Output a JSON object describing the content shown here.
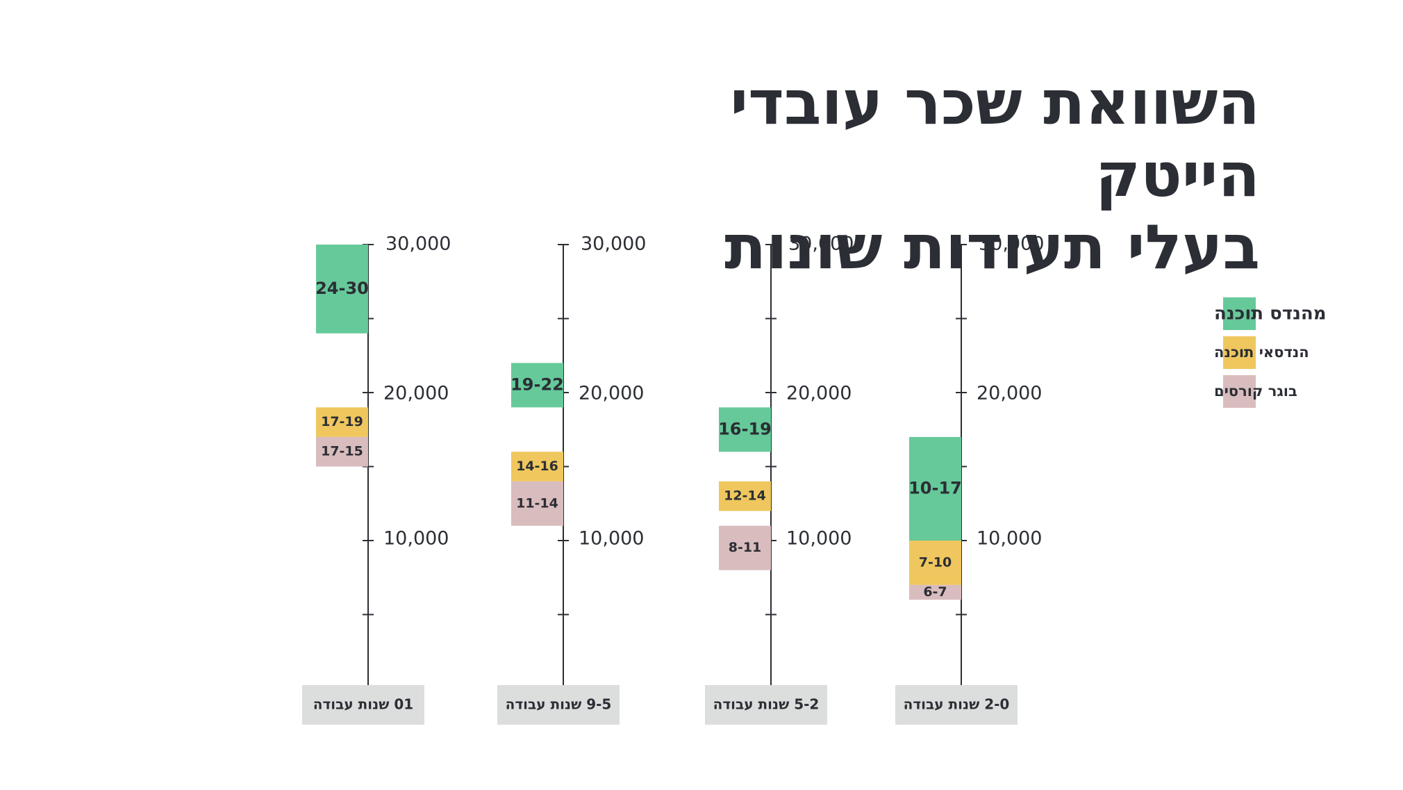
{
  "title": {
    "line1": "השוואת שכר עובדי הייטק",
    "line2": "בעלי תעודות שונות"
  },
  "chart_data": {
    "type": "bar",
    "subtype": "floating-range",
    "title": "השוואת שכר עובדי הייטק בעלי תעודות שונות",
    "ylim": [
      0,
      30000
    ],
    "y_ticks": [
      10000,
      20000,
      30000
    ],
    "y_tick_labels": [
      "10,000",
      "20,000",
      "30,000"
    ],
    "categories": [
      "2-0 שנות עבודה",
      "5-2 שנות עבודה",
      "9-5 שנות עבודה",
      "01 שנות עבודה"
    ],
    "series": [
      {
        "name": "מהנדס תוכנה",
        "color": "#66c99a",
        "ranges": [
          [
            10000,
            17000
          ],
          [
            16000,
            19000
          ],
          [
            19000,
            22000
          ],
          [
            24000,
            30000
          ]
        ],
        "labels": [
          "10-17",
          "16-19",
          "19-22",
          "24-30"
        ]
      },
      {
        "name": "הנדסאי תוכנה",
        "color": "#efc75e",
        "ranges": [
          [
            7000,
            10000
          ],
          [
            12000,
            14000
          ],
          [
            14000,
            16000
          ],
          [
            17000,
            19000
          ]
        ],
        "labels": [
          "7-10",
          "12-14",
          "14-16",
          "17-19"
        ]
      },
      {
        "name": "בוגר קורסים",
        "color": "#d9bcbe",
        "ranges": [
          [
            6000,
            7000
          ],
          [
            8000,
            11000
          ],
          [
            11000,
            14000
          ],
          [
            15000,
            17000
          ]
        ],
        "labels": [
          "6-7",
          "8-11",
          "11-14",
          "17-15"
        ]
      }
    ],
    "legend_position": "right"
  }
}
